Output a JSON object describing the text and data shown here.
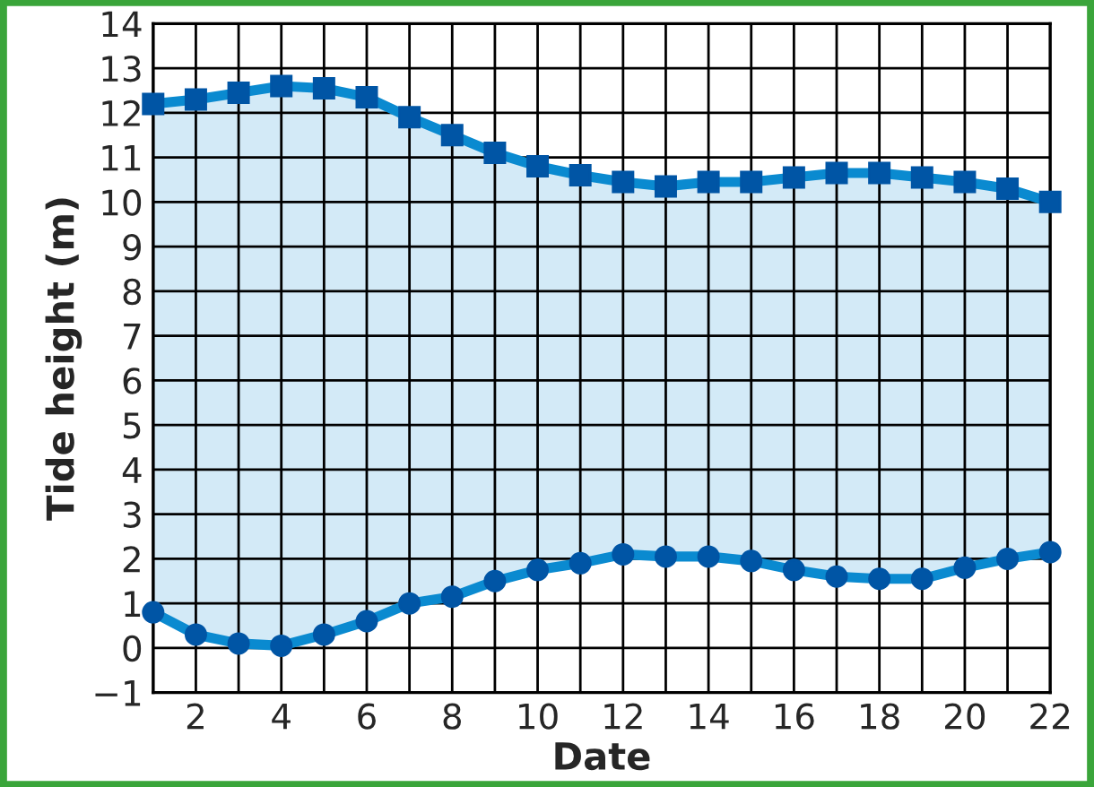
{
  "chart_data": {
    "type": "line",
    "xlabel": "Date",
    "ylabel": "Tide height (m)",
    "x": [
      1,
      2,
      3,
      4,
      5,
      6,
      7,
      8,
      9,
      10,
      11,
      12,
      13,
      14,
      15,
      16,
      17,
      18,
      19,
      20,
      21,
      22
    ],
    "series": [
      {
        "type": "area",
        "color": "#0a8ad0",
        "marker": "square",
        "values": [
          12.2,
          12.3,
          12.45,
          12.6,
          12.55,
          12.35,
          11.9,
          11.5,
          11.1,
          10.8,
          10.6,
          10.45,
          10.35,
          10.45,
          10.45,
          10.55,
          10.65,
          10.65,
          10.55,
          10.45,
          10.3,
          10.0
        ]
      },
      {
        "color": "#0a8ad0",
        "marker": "circle",
        "values": [
          0.8,
          0.3,
          0.1,
          0.05,
          0.3,
          0.6,
          1.0,
          1.15,
          1.5,
          1.75,
          1.9,
          2.1,
          2.05,
          2.05,
          1.95,
          1.75,
          1.6,
          1.55,
          1.55,
          1.8,
          2.0,
          2.15
        ]
      }
    ],
    "xlim": [
      1,
      22
    ],
    "ylim": [
      -1,
      14
    ],
    "xticks": [
      {
        "value": 1,
        "label": null
      },
      2,
      {
        "value": 3,
        "label": null
      },
      4,
      {
        "value": 5,
        "label": null
      },
      6,
      {
        "value": 7,
        "label": null
      },
      8,
      {
        "value": 9,
        "label": null
      },
      10,
      {
        "value": 11,
        "label": null
      },
      12,
      {
        "value": 13,
        "label": null
      },
      14,
      {
        "value": 15,
        "label": null
      },
      16,
      {
        "value": 17,
        "label": null
      },
      18,
      {
        "value": 19,
        "label": null
      },
      20,
      {
        "value": 21,
        "label": null
      },
      22
    ],
    "yticks": [
      {
        "value": -1,
        "label": "−1"
      },
      0,
      1,
      2,
      3,
      4,
      5,
      6,
      7,
      8,
      9,
      10,
      11,
      12,
      13,
      14
    ],
    "grid": true,
    "legend": false,
    "line_style": "solid"
  }
}
